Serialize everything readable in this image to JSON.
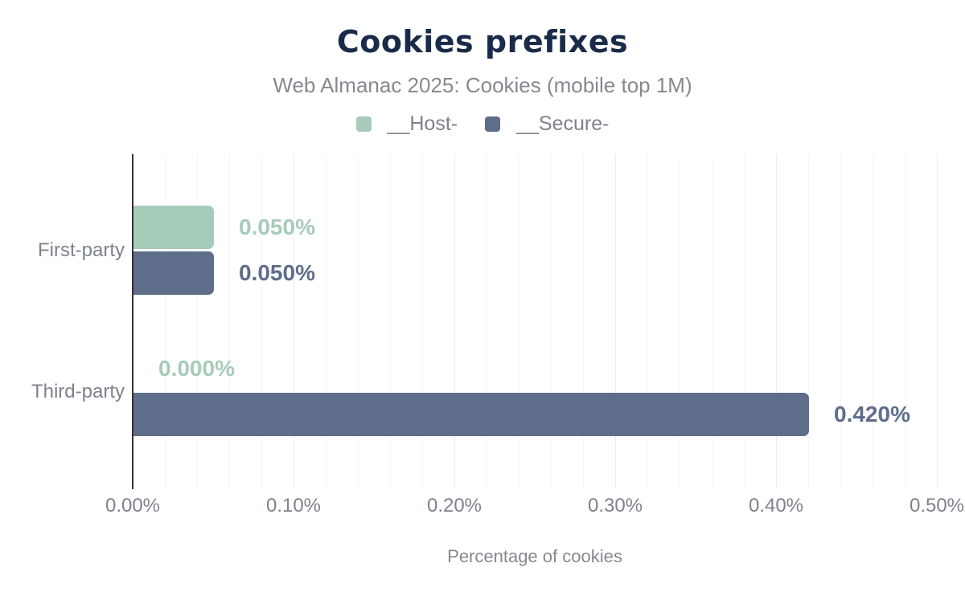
{
  "header": {
    "title": "Cookies prefixes",
    "subtitle": "Web Almanac 2025: Cookies (mobile top 1M)"
  },
  "legend": [
    {
      "label": "__Host-",
      "color": "#a7cbb9"
    },
    {
      "label": "__Secure-",
      "color": "#5e6e8a"
    }
  ],
  "chart_data": {
    "type": "bar",
    "orientation": "horizontal",
    "title": "Cookies prefixes",
    "subtitle": "Web Almanac 2025: Cookies (mobile top 1M)",
    "categories": [
      "First-party",
      "Third-party"
    ],
    "series": [
      {
        "name": "__Host-",
        "color": "#a7cbb9",
        "values": [
          0.05,
          0.0
        ],
        "data_labels": [
          "0.050%",
          "0.000%"
        ]
      },
      {
        "name": "__Secure-",
        "color": "#5e6e8a",
        "values": [
          0.05,
          0.42
        ],
        "data_labels": [
          "0.050%",
          "0.420%"
        ]
      }
    ],
    "xlabel": "Percentage of cookies",
    "ylabel": "",
    "xlim": [
      0,
      0.5
    ],
    "x_ticks": [
      "0.00%",
      "0.10%",
      "0.20%",
      "0.30%",
      "0.40%",
      "0.50%"
    ],
    "grid": true,
    "legend_position": "top"
  },
  "colors": {
    "title": "#1a2b49",
    "subtitle_text": "#85898f",
    "axis_text": "#7d828b",
    "axis_line": "#303136",
    "grid_minor": "#f6f6f7",
    "grid_major": "#ececee",
    "background": "#ffffff"
  }
}
